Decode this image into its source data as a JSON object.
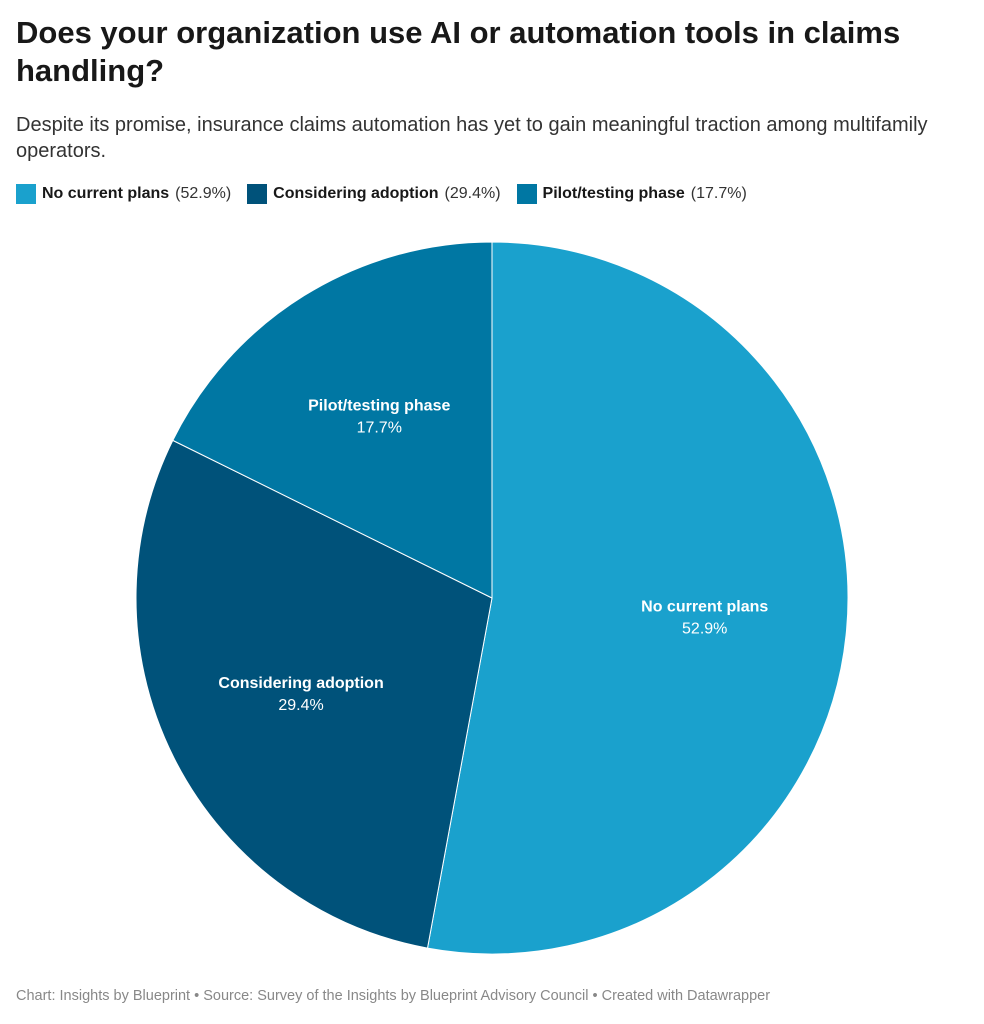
{
  "title": "Does your organization use AI or automation tools in claims handling?",
  "subtitle": "Despite its promise, insurance claims automation has yet to gain meaningful traction among multifamily operators.",
  "footer": {
    "chart": "Chart: Insights by Blueprint",
    "source": "Source: Survey of the Insights by Blueprint Advisory Council",
    "created": "Created with Datawrapper",
    "separator": " • "
  },
  "chart_data": {
    "type": "pie",
    "title": "Does your organization use AI or automation tools in claims handling?",
    "legend_position": "top-left",
    "slices": [
      {
        "label": "No current plans",
        "value": 52.9,
        "value_label": "52.9%",
        "legend_value": "(52.9%)",
        "color": "#1aa1cd"
      },
      {
        "label": "Considering adoption",
        "value": 29.4,
        "value_label": "29.4%",
        "legend_value": "(29.4%)",
        "color": "#00527a"
      },
      {
        "label": "Pilot/testing phase",
        "value": 17.7,
        "value_label": "17.7%",
        "legend_value": "(17.7%)",
        "color": "#0077a3"
      }
    ]
  }
}
